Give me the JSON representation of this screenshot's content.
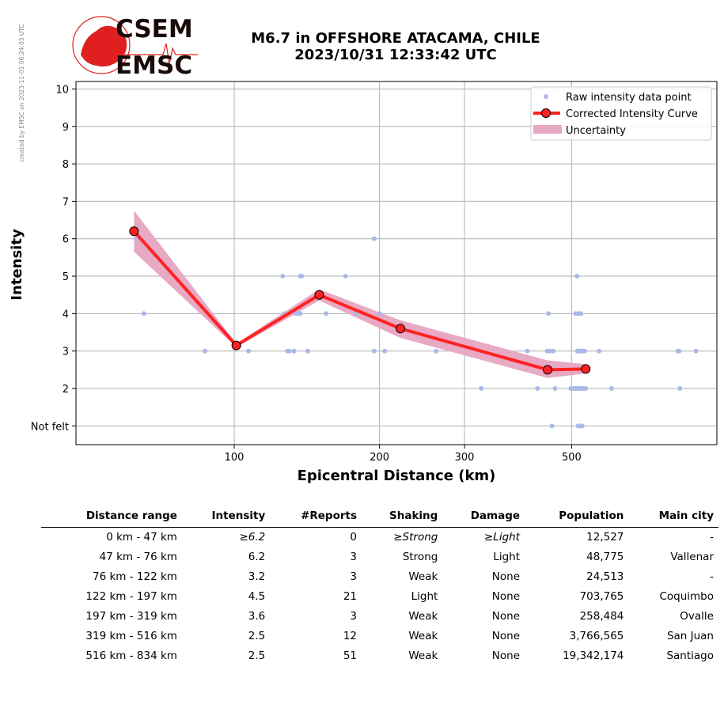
{
  "watermark": "created by EMSC on 2023-11-01 06:24:03 UTC",
  "logo": {
    "line1": "CSEM",
    "line2": "EMSC",
    "brand_color": "#e02020"
  },
  "title": {
    "line1": "M6.7 in OFFSHORE ATACAMA, CHILE",
    "line2": "2023/10/31 12:33:42 UTC"
  },
  "chart_data": {
    "type": "scatter",
    "xlabel": "Epicentral Distance (km)",
    "ylabel": "Intensity",
    "xscale": "log",
    "xlim": [
      47,
      1000
    ],
    "ylim": [
      0.5,
      10.2
    ],
    "xticks": [
      100,
      200,
      300,
      500
    ],
    "xtick_labels": [
      "100",
      "200",
      "300",
      "500"
    ],
    "yticks": [
      1,
      2,
      3,
      4,
      5,
      6,
      7,
      8,
      9,
      10
    ],
    "ytick_labels": [
      "Not felt",
      "2",
      "3",
      "4",
      "5",
      "6",
      "7",
      "8",
      "9",
      "10"
    ],
    "grid": true,
    "legend_position": "top-right",
    "legend": [
      "Raw intensity data point",
      "Corrected Intensity Curve",
      "Uncertainty"
    ],
    "colors": {
      "raw": "#aab9e8",
      "curve": "#ff2222",
      "uncertainty": "#e8a9c4"
    },
    "raw_points": [
      [
        63,
        6
      ],
      [
        65,
        4
      ],
      [
        87,
        3
      ],
      [
        107,
        3
      ],
      [
        126,
        5
      ],
      [
        127,
        4
      ],
      [
        129,
        3
      ],
      [
        130,
        3
      ],
      [
        133,
        3
      ],
      [
        134,
        4
      ],
      [
        136,
        4
      ],
      [
        137,
        4
      ],
      [
        137,
        5
      ],
      [
        138,
        5
      ],
      [
        142,
        3
      ],
      [
        155,
        4
      ],
      [
        170,
        5
      ],
      [
        178,
        4
      ],
      [
        195,
        6
      ],
      [
        195,
        3
      ],
      [
        200,
        4
      ],
      [
        205,
        3
      ],
      [
        262,
        3
      ],
      [
        325,
        2
      ],
      [
        405,
        3
      ],
      [
        425,
        2
      ],
      [
        445,
        3
      ],
      [
        448,
        4
      ],
      [
        450,
        3
      ],
      [
        455,
        1
      ],
      [
        458,
        3
      ],
      [
        462,
        2
      ],
      [
        498,
        2
      ],
      [
        505,
        2
      ],
      [
        508,
        2
      ],
      [
        510,
        4
      ],
      [
        512,
        2
      ],
      [
        513,
        5
      ],
      [
        514,
        3
      ],
      [
        516,
        1
      ],
      [
        517,
        2
      ],
      [
        518,
        4
      ],
      [
        519,
        3
      ],
      [
        520,
        2
      ],
      [
        522,
        1
      ],
      [
        523,
        4
      ],
      [
        524,
        3
      ],
      [
        525,
        2
      ],
      [
        526,
        1
      ],
      [
        528,
        3
      ],
      [
        530,
        2
      ],
      [
        532,
        3
      ],
      [
        535,
        2
      ],
      [
        570,
        3
      ],
      [
        605,
        2
      ],
      [
        830,
        3
      ],
      [
        835,
        3
      ],
      [
        838,
        2
      ],
      [
        905,
        3
      ]
    ],
    "curve": {
      "x": [
        62,
        101,
        150,
        221,
        446,
        535
      ],
      "y": [
        6.2,
        3.15,
        4.5,
        3.6,
        2.5,
        2.52
      ]
    },
    "uncertainty_band": {
      "x": [
        62,
        101,
        150,
        221,
        446,
        535
      ],
      "upper": [
        6.75,
        3.2,
        4.65,
        3.82,
        2.75,
        2.65
      ],
      "lower": [
        5.65,
        3.1,
        4.35,
        3.35,
        2.28,
        2.4
      ]
    }
  },
  "table": {
    "headers": [
      "Distance range",
      "Intensity",
      "#Reports",
      "Shaking",
      "Damage",
      "Population",
      "Main city"
    ],
    "rows": [
      [
        "0 km -   47 km",
        "≥6.2",
        "0",
        "≥Strong",
        "≥Light",
        "12,527",
        "-"
      ],
      [
        "47 km -   76 km",
        "6.2",
        "3",
        "Strong",
        "Light",
        "48,775",
        "Vallenar"
      ],
      [
        "76 km -  122 km",
        "3.2",
        "3",
        "Weak",
        "None",
        "24,513",
        "-"
      ],
      [
        "122 km -  197 km",
        "4.5",
        "21",
        "Light",
        "None",
        "703,765",
        "Coquimbo"
      ],
      [
        "197 km -  319 km",
        "3.6",
        "3",
        "Weak",
        "None",
        "258,484",
        "Ovalle"
      ],
      [
        "319 km -  516 km",
        "2.5",
        "12",
        "Weak",
        "None",
        "3,766,565",
        "San Juan"
      ],
      [
        "516 km -  834 km",
        "2.5",
        "51",
        "Weak",
        "None",
        "19,342,174",
        "Santiago"
      ]
    ]
  }
}
